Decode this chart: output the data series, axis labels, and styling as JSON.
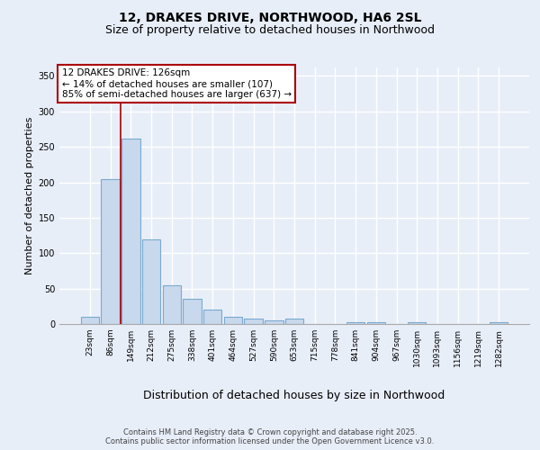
{
  "title1": "12, DRAKES DRIVE, NORTHWOOD, HA6 2SL",
  "title2": "Size of property relative to detached houses in Northwood",
  "xlabel": "Distribution of detached houses by size in Northwood",
  "ylabel": "Number of detached properties",
  "categories": [
    "23sqm",
    "86sqm",
    "149sqm",
    "212sqm",
    "275sqm",
    "338sqm",
    "401sqm",
    "464sqm",
    "527sqm",
    "590sqm",
    "653sqm",
    "715sqm",
    "778sqm",
    "841sqm",
    "904sqm",
    "967sqm",
    "1030sqm",
    "1093sqm",
    "1156sqm",
    "1219sqm",
    "1282sqm"
  ],
  "values": [
    10,
    205,
    262,
    120,
    55,
    35,
    20,
    10,
    8,
    5,
    7,
    0,
    0,
    3,
    3,
    0,
    3,
    0,
    0,
    0,
    2
  ],
  "bar_color": "#c8d8ed",
  "bar_edge_color": "#7aaacf",
  "vline_x": 1.5,
  "vline_color": "#aa0000",
  "annotation_text": "12 DRAKES DRIVE: 126sqm\n← 14% of detached houses are smaller (107)\n85% of semi-detached houses are larger (637) →",
  "annotation_facecolor": "#ffffff",
  "annotation_edgecolor": "#aa0000",
  "ylim": [
    0,
    362
  ],
  "yticks": [
    0,
    50,
    100,
    150,
    200,
    250,
    300,
    350
  ],
  "footer1": "Contains HM Land Registry data © Crown copyright and database right 2025.",
  "footer2": "Contains public sector information licensed under the Open Government Licence v3.0.",
  "bg_color": "#e8eef8",
  "grid_color": "#ffffff",
  "title_fontsize": 10,
  "subtitle_fontsize": 9,
  "ylabel_fontsize": 8,
  "xlabel_fontsize": 9,
  "tick_fontsize": 6.5,
  "ann_fontsize": 7.5,
  "footer_fontsize": 6
}
